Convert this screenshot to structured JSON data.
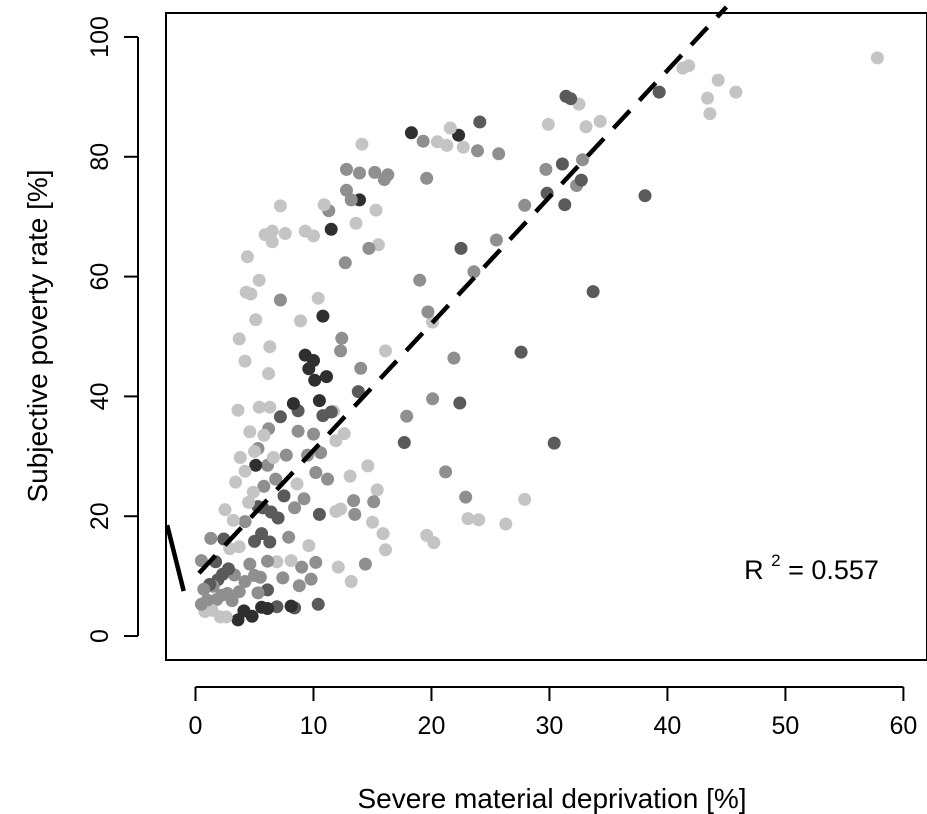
{
  "chart_data": {
    "type": "scatter",
    "title": "",
    "xlabel": "Severe material deprivation [%]",
    "ylabel": "Subjective poverty rate [%]",
    "xlim": [
      -2.5,
      62
    ],
    "ylim": [
      -4,
      104
    ],
    "xticks": [
      0,
      10,
      20,
      30,
      40,
      50,
      60
    ],
    "yticks": [
      0,
      20,
      40,
      60,
      80,
      100
    ],
    "grid": false,
    "annotation": {
      "base": "R",
      "sup": "2",
      "value": " = 0.557",
      "x": 46.5,
      "y": 9.5
    },
    "colors": {
      "light": "#c4c4c4",
      "mid": "#8f8f8f",
      "dark": "#5a5a5a",
      "darkest": "#2f2f2f"
    },
    "fit_line": {
      "style": "dashed",
      "x": [
        0.3,
        45
      ],
      "y": [
        10.5,
        105
      ]
    },
    "extra_segment": {
      "x": [
        -2.4,
        -1.0
      ],
      "y": [
        18.5,
        7.5
      ]
    },
    "points": [
      [
        57.8,
        96.5,
        "light"
      ],
      [
        45.8,
        90.8,
        "light"
      ],
      [
        44.3,
        92.8,
        "light"
      ],
      [
        43.4,
        89.8,
        "light"
      ],
      [
        43.6,
        87.2,
        "light"
      ],
      [
        41.8,
        95.2,
        "light"
      ],
      [
        41.3,
        94.8,
        "light"
      ],
      [
        39.3,
        90.8,
        "dark"
      ],
      [
        38.1,
        73.5,
        "dark"
      ],
      [
        34.3,
        85.9,
        "light"
      ],
      [
        33.7,
        57.5,
        "dark"
      ],
      [
        33.1,
        85.0,
        "light"
      ],
      [
        32.5,
        88.8,
        "light"
      ],
      [
        31.8,
        89.7,
        "dark"
      ],
      [
        31.4,
        90.1,
        "dark"
      ],
      [
        32.8,
        79.5,
        "mid"
      ],
      [
        32.3,
        75.2,
        "mid"
      ],
      [
        32.7,
        76.1,
        "dark"
      ],
      [
        31.1,
        78.8,
        "dark"
      ],
      [
        31.3,
        72.0,
        "dark"
      ],
      [
        29.9,
        85.4,
        "light"
      ],
      [
        29.7,
        77.9,
        "mid"
      ],
      [
        29.8,
        73.9,
        "dark"
      ],
      [
        30.4,
        32.2,
        "dark"
      ],
      [
        27.9,
        71.9,
        "mid"
      ],
      [
        27.6,
        47.4,
        "dark"
      ],
      [
        27.9,
        22.8,
        "light"
      ],
      [
        26.3,
        18.7,
        "light"
      ],
      [
        25.5,
        66.1,
        "mid"
      ],
      [
        25.7,
        80.5,
        "mid"
      ],
      [
        24.1,
        85.8,
        "dark"
      ],
      [
        23.9,
        81.0,
        "mid"
      ],
      [
        23.6,
        60.8,
        "mid"
      ],
      [
        23.1,
        19.6,
        "light"
      ],
      [
        24.0,
        19.4,
        "light"
      ],
      [
        22.9,
        23.2,
        "mid"
      ],
      [
        22.5,
        64.7,
        "dark"
      ],
      [
        22.3,
        83.6,
        "darkest"
      ],
      [
        22.7,
        81.6,
        "light"
      ],
      [
        21.6,
        84.8,
        "light"
      ],
      [
        22.4,
        38.9,
        "dark"
      ],
      [
        21.3,
        81.9,
        "light"
      ],
      [
        21.9,
        46.4,
        "mid"
      ],
      [
        21.2,
        27.4,
        "mid"
      ],
      [
        20.5,
        82.5,
        "light"
      ],
      [
        20.1,
        52.4,
        "light"
      ],
      [
        20.1,
        39.6,
        "mid"
      ],
      [
        20.2,
        15.6,
        "light"
      ],
      [
        19.6,
        16.8,
        "light"
      ],
      [
        19.6,
        76.4,
        "mid"
      ],
      [
        19.3,
        82.6,
        "mid"
      ],
      [
        19.7,
        54.1,
        "mid"
      ],
      [
        19.0,
        59.4,
        "mid"
      ],
      [
        18.3,
        84.0,
        "darkest"
      ],
      [
        17.9,
        36.7,
        "mid"
      ],
      [
        17.7,
        32.3,
        "dark"
      ],
      [
        16.3,
        77.0,
        "mid"
      ],
      [
        16.1,
        47.6,
        "light"
      ],
      [
        16.0,
        76.2,
        "mid"
      ],
      [
        15.9,
        17.1,
        "light"
      ],
      [
        16.1,
        14.4,
        "light"
      ],
      [
        15.3,
        71.1,
        "light"
      ],
      [
        15.2,
        77.4,
        "mid"
      ],
      [
        15.5,
        65.3,
        "light"
      ],
      [
        15.4,
        24.4,
        "light"
      ],
      [
        15.1,
        22.4,
        "mid"
      ],
      [
        15.0,
        19.0,
        "light"
      ],
      [
        14.6,
        28.4,
        "light"
      ],
      [
        14.4,
        12.0,
        "mid"
      ],
      [
        14.7,
        64.7,
        "mid"
      ],
      [
        14.1,
        82.1,
        "light"
      ],
      [
        13.9,
        77.3,
        "mid"
      ],
      [
        13.9,
        72.8,
        "darkest"
      ],
      [
        13.6,
        68.9,
        "light"
      ],
      [
        14.0,
        44.7,
        "mid"
      ],
      [
        13.8,
        40.8,
        "dark"
      ],
      [
        13.5,
        20.3,
        "mid"
      ],
      [
        13.2,
        72.8,
        "mid"
      ],
      [
        13.1,
        26.7,
        "light"
      ],
      [
        13.4,
        22.6,
        "mid"
      ],
      [
        12.8,
        77.9,
        "mid"
      ],
      [
        12.8,
        74.4,
        "mid"
      ],
      [
        12.7,
        62.3,
        "mid"
      ],
      [
        12.6,
        33.8,
        "light"
      ],
      [
        12.4,
        49.7,
        "mid"
      ],
      [
        12.3,
        47.6,
        "mid"
      ],
      [
        12.3,
        21.2,
        "light"
      ],
      [
        11.9,
        32.6,
        "light"
      ],
      [
        11.7,
        37.5,
        "light"
      ],
      [
        11.5,
        67.9,
        "darkest"
      ],
      [
        11.9,
        20.8,
        "light"
      ],
      [
        11.3,
        71.0,
        "mid"
      ],
      [
        11.1,
        43.3,
        "darkest"
      ],
      [
        11.5,
        37.4,
        "dark"
      ],
      [
        10.9,
        72.0,
        "light"
      ],
      [
        10.8,
        53.4,
        "darkest"
      ],
      [
        10.8,
        36.8,
        "dark"
      ],
      [
        10.6,
        30.6,
        "mid"
      ],
      [
        10.5,
        20.3,
        "dark"
      ],
      [
        10.5,
        39.3,
        "darkest"
      ],
      [
        10.4,
        56.4,
        "light"
      ],
      [
        10.2,
        12.3,
        "mid"
      ],
      [
        10.4,
        5.3,
        "dark"
      ],
      [
        10.0,
        66.8,
        "light"
      ],
      [
        10.0,
        46.0,
        "darkest"
      ],
      [
        10.1,
        42.7,
        "darkest"
      ],
      [
        10.0,
        33.7,
        "mid"
      ],
      [
        10.2,
        27.3,
        "mid"
      ],
      [
        9.8,
        9.5,
        "mid"
      ],
      [
        9.6,
        44.6,
        "darkest"
      ],
      [
        9.5,
        30.2,
        "mid"
      ],
      [
        9.3,
        67.6,
        "light"
      ],
      [
        9.3,
        46.9,
        "darkest"
      ],
      [
        9.2,
        22.9,
        "mid"
      ],
      [
        9.0,
        11.5,
        "mid"
      ],
      [
        8.9,
        52.6,
        "light"
      ],
      [
        8.7,
        37.6,
        "dark"
      ],
      [
        8.7,
        34.2,
        "mid"
      ],
      [
        8.6,
        25.4,
        "light"
      ],
      [
        8.4,
        21.4,
        "mid"
      ],
      [
        8.4,
        4.7,
        "dark"
      ],
      [
        8.3,
        38.8,
        "darkest"
      ],
      [
        8.1,
        12.6,
        "light"
      ],
      [
        8.1,
        5.0,
        "darkest"
      ],
      [
        7.6,
        67.2,
        "light"
      ],
      [
        7.7,
        30.2,
        "mid"
      ],
      [
        7.4,
        9.7,
        "mid"
      ],
      [
        7.2,
        71.8,
        "light"
      ],
      [
        7.2,
        56.1,
        "mid"
      ],
      [
        7.2,
        36.6,
        "dark"
      ],
      [
        7.0,
        19.7,
        "dark"
      ],
      [
        6.9,
        12.4,
        "light"
      ],
      [
        6.9,
        4.9,
        "dark"
      ],
      [
        6.5,
        67.6,
        "light"
      ],
      [
        6.5,
        65.8,
        "light"
      ],
      [
        6.3,
        48.3,
        "light"
      ],
      [
        6.3,
        38.2,
        "light"
      ],
      [
        6.2,
        43.8,
        "light"
      ],
      [
        6.2,
        34.6,
        "mid"
      ],
      [
        6.1,
        28.5,
        "mid"
      ],
      [
        6.4,
        20.7,
        "dark"
      ],
      [
        6.3,
        15.7,
        "dark"
      ],
      [
        6.1,
        12.5,
        "mid"
      ],
      [
        6.1,
        7.7,
        "dark"
      ],
      [
        6.1,
        4.6,
        "darkest"
      ],
      [
        5.9,
        67.0,
        "light"
      ],
      [
        5.8,
        33.5,
        "light"
      ],
      [
        5.8,
        25.0,
        "mid"
      ],
      [
        5.7,
        21.4,
        "dark"
      ],
      [
        5.6,
        17.1,
        "dark"
      ],
      [
        5.5,
        9.8,
        "mid"
      ],
      [
        5.6,
        4.8,
        "darkest"
      ],
      [
        5.4,
        59.4,
        "light"
      ],
      [
        5.4,
        38.2,
        "light"
      ],
      [
        5.3,
        31.3,
        "mid"
      ],
      [
        5.3,
        21.6,
        "dark"
      ],
      [
        5.3,
        7.2,
        "mid"
      ],
      [
        5.1,
        52.8,
        "light"
      ],
      [
        5.0,
        30.8,
        "light"
      ],
      [
        5.1,
        28.5,
        "darkest"
      ],
      [
        5.0,
        15.8,
        "dark"
      ],
      [
        5.0,
        10.1,
        "mid"
      ],
      [
        4.8,
        3.3,
        "darkest"
      ],
      [
        4.7,
        57.1,
        "light"
      ],
      [
        4.6,
        34.1,
        "light"
      ],
      [
        4.5,
        22.3,
        "light"
      ],
      [
        4.6,
        12.0,
        "mid"
      ],
      [
        4.4,
        63.3,
        "light"
      ],
      [
        4.3,
        57.4,
        "light"
      ],
      [
        4.2,
        45.9,
        "light"
      ],
      [
        4.2,
        27.5,
        "light"
      ],
      [
        4.2,
        19.1,
        "mid"
      ],
      [
        4.2,
        9.1,
        "mid"
      ],
      [
        4.1,
        4.2,
        "darkest"
      ],
      [
        3.7,
        49.6,
        "light"
      ],
      [
        3.6,
        37.7,
        "light"
      ],
      [
        3.8,
        29.8,
        "light"
      ],
      [
        3.7,
        14.9,
        "light"
      ],
      [
        3.7,
        7.4,
        "mid"
      ],
      [
        3.6,
        2.7,
        "darkest"
      ],
      [
        3.2,
        19.3,
        "light"
      ],
      [
        3.3,
        10.2,
        "mid"
      ],
      [
        3.1,
        5.9,
        "mid"
      ],
      [
        2.9,
        14.6,
        "light"
      ],
      [
        2.8,
        11.2,
        "dark"
      ],
      [
        2.7,
        7.1,
        "mid"
      ],
      [
        2.6,
        3.2,
        "light"
      ],
      [
        2.4,
        16.2,
        "dark"
      ],
      [
        2.3,
        10.3,
        "dark"
      ],
      [
        2.2,
        6.8,
        "mid"
      ],
      [
        2.1,
        3.2,
        "light"
      ],
      [
        1.9,
        9.4,
        "dark"
      ],
      [
        1.8,
        6.1,
        "mid"
      ],
      [
        1.7,
        12.4,
        "dark"
      ],
      [
        1.5,
        8.3,
        "mid"
      ],
      [
        1.4,
        4.3,
        "light"
      ],
      [
        1.3,
        16.3,
        "mid"
      ],
      [
        1.2,
        8.6,
        "dark"
      ],
      [
        1.0,
        6.0,
        "mid"
      ],
      [
        0.8,
        4.1,
        "light"
      ],
      [
        0.7,
        7.8,
        "mid"
      ],
      [
        0.5,
        5.3,
        "mid"
      ],
      [
        0.5,
        12.6,
        "mid"
      ],
      [
        3.4,
        25.7,
        "light"
      ],
      [
        4.9,
        24.0,
        "light"
      ],
      [
        2.5,
        21.1,
        "light"
      ],
      [
        6.8,
        26.2,
        "mid"
      ],
      [
        7.9,
        16.5,
        "mid"
      ],
      [
        8.8,
        8.4,
        "mid"
      ],
      [
        9.6,
        15.1,
        "light"
      ],
      [
        11.2,
        26.2,
        "mid"
      ],
      [
        12.1,
        11.5,
        "light"
      ],
      [
        13.2,
        9.1,
        "light"
      ],
      [
        6.6,
        29.8,
        "light"
      ],
      [
        7.5,
        23.4,
        "dark"
      ]
    ]
  }
}
